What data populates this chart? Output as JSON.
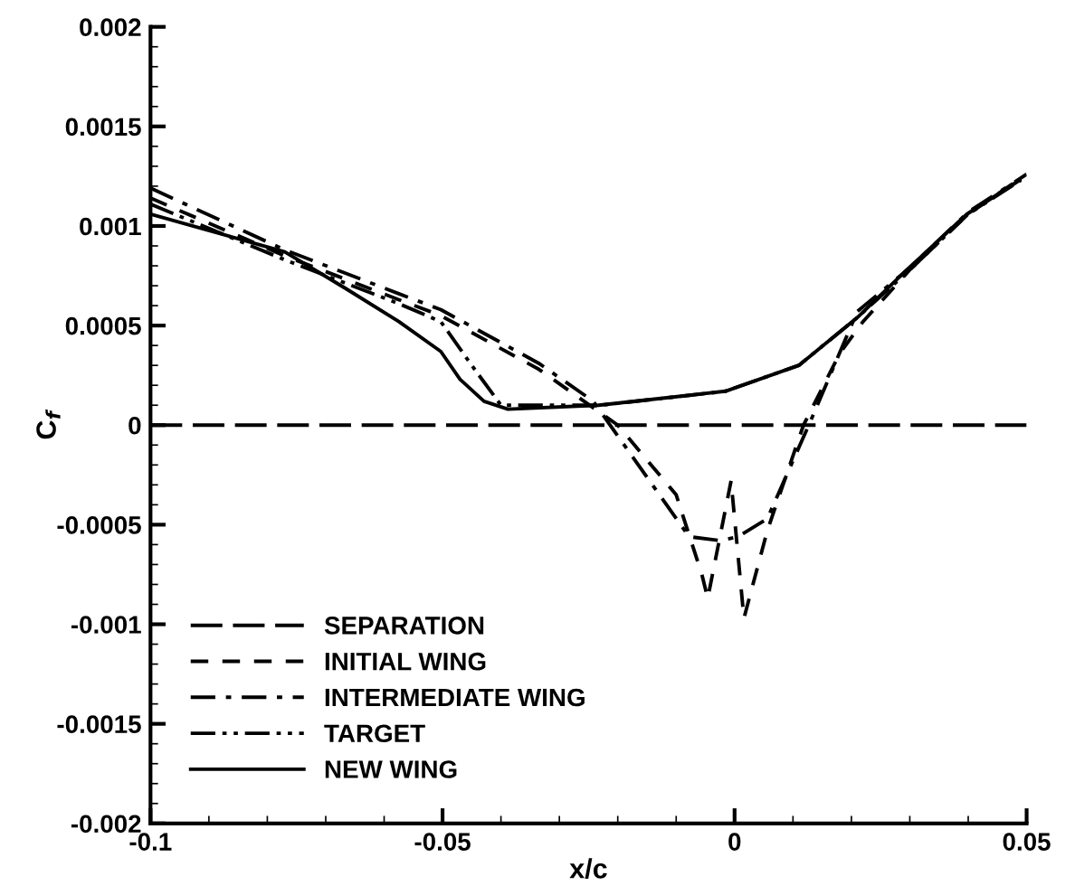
{
  "chart_data": {
    "type": "line",
    "xlabel": "x/c",
    "ylabel": "C$_{f}$",
    "xlim": [
      -0.1,
      0.05
    ],
    "ylim": [
      -0.002,
      0.002
    ],
    "xticks": [
      -0.1,
      -0.05,
      0,
      0.05
    ],
    "yticks": [
      -0.002,
      -0.0015,
      -0.001,
      -0.0005,
      0,
      0.0005,
      0.001,
      0.0015,
      0.002
    ],
    "grid": false,
    "legend": "bottom left",
    "marker": "none",
    "series": [
      {
        "name": "SEPARATION",
        "color": "#000000",
        "line_style": "longdash",
        "x": [
          -0.1,
          0.05
        ],
        "values": [
          0,
          0
        ]
      },
      {
        "name": "INITIAL WING",
        "color": "#000000",
        "line_style": "dashed",
        "x": [
          -0.1,
          -0.077,
          -0.0575,
          -0.0503,
          -0.0335,
          -0.02,
          -0.01,
          -0.0056,
          -0.0046,
          -0.0006,
          0.0016,
          0.0056,
          0.0118,
          0.018,
          0.022,
          0.03,
          0.04,
          0.049
        ],
        "values": [
          0.00114,
          0.00085,
          0.00063,
          0.00055,
          0.00028,
          0.0,
          -0.00035,
          -0.00075,
          -0.00087,
          -0.00028,
          -0.00097,
          -0.00053,
          0.0,
          0.00036,
          0.00052,
          0.00078,
          0.00106,
          0.00124
        ]
      },
      {
        "name": "INTERMEDIATE WING",
        "color": "#000000",
        "line_style": "dashdot",
        "x": [
          -0.1,
          -0.077,
          -0.0575,
          -0.0503,
          -0.0335,
          -0.0242,
          -0.0078,
          -0.0025,
          0.0006,
          0.0056,
          0.013,
          0.021,
          0.03,
          0.04,
          0.05
        ],
        "values": [
          0.00119,
          0.00088,
          0.00066,
          0.00058,
          0.00031,
          0.00012,
          -0.00056,
          -0.00058,
          -0.00056,
          -0.00047,
          2e-05,
          0.00057,
          0.00079,
          0.00107,
          0.00126
        ]
      },
      {
        "name": "TARGET",
        "color": "#000000",
        "line_style": "dashdotdot",
        "x": [
          -0.1,
          -0.077,
          -0.0575,
          -0.0503,
          -0.045,
          -0.04,
          -0.03,
          -0.023,
          -0.0016,
          0.011,
          0.021,
          0.03,
          0.04,
          0.049
        ],
        "values": [
          0.00111,
          0.00083,
          0.00061,
          0.00052,
          0.0003,
          0.0001,
          0.0001,
          0.0001,
          0.00017,
          0.0003,
          0.00054,
          0.00078,
          0.00106,
          0.00123
        ]
      },
      {
        "name": "NEW WING",
        "color": "#000000",
        "line_style": "solid",
        "x": [
          -0.1,
          -0.077,
          -0.0668,
          -0.0575,
          -0.0503,
          -0.047,
          -0.0429,
          -0.0388,
          -0.0233,
          -0.0016,
          0.011,
          0.021,
          0.0295,
          0.0398,
          0.0488
        ],
        "values": [
          0.00106,
          0.00087,
          0.00069,
          0.00052,
          0.00037,
          0.00023,
          0.00012,
          8e-05,
          0.0001,
          0.00017,
          0.0003,
          0.00054,
          0.00078,
          0.00106,
          0.00123
        ]
      }
    ]
  }
}
